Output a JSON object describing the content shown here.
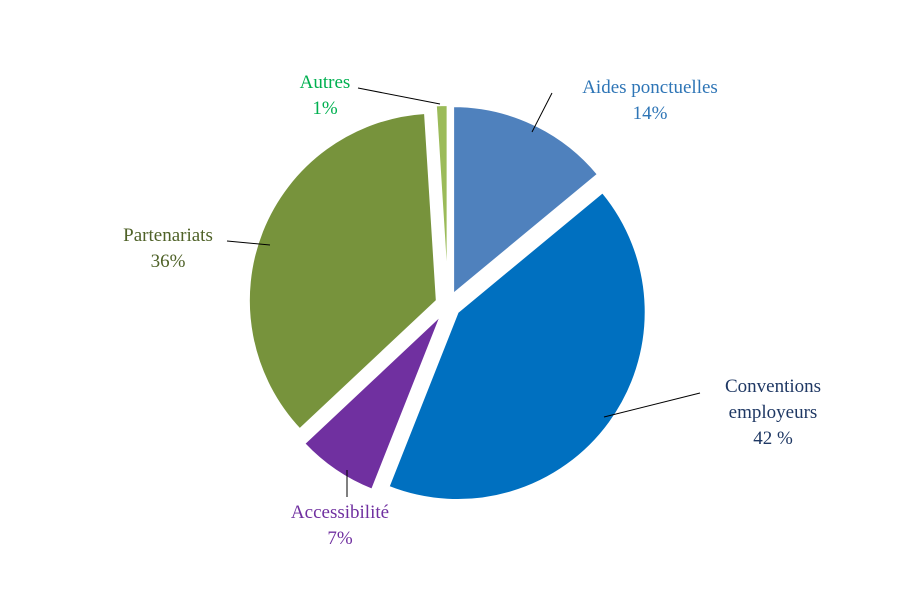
{
  "chart_data": {
    "type": "pie",
    "title": "",
    "slices": [
      {
        "name": "Aides ponctuelles",
        "value_label": "14%",
        "value": 14,
        "color": "#4F81BD"
      },
      {
        "name": "Conventions employeurs",
        "name_lines": [
          "Conventions",
          "employeurs"
        ],
        "value_label": "42 %",
        "value": 42,
        "color": "#0070C0"
      },
      {
        "name": "Accessibilité",
        "value_label": "7%",
        "value": 7,
        "color": "#7030A0"
      },
      {
        "name": "Partenariats",
        "value_label": "36%",
        "value": 36,
        "color": "#77933C"
      },
      {
        "name": "Autres",
        "value_label": "1%",
        "value": 1,
        "color": "#9BBB59"
      }
    ],
    "label_colors": {
      "Aides ponctuelles": "#2E75B6",
      "Conventions employeurs": "#1F3864",
      "Accessibilité": "#7030A0",
      "Partenariats": "#4F6228",
      "Autres": "#00B050"
    },
    "legend": "none",
    "exploded": true
  }
}
